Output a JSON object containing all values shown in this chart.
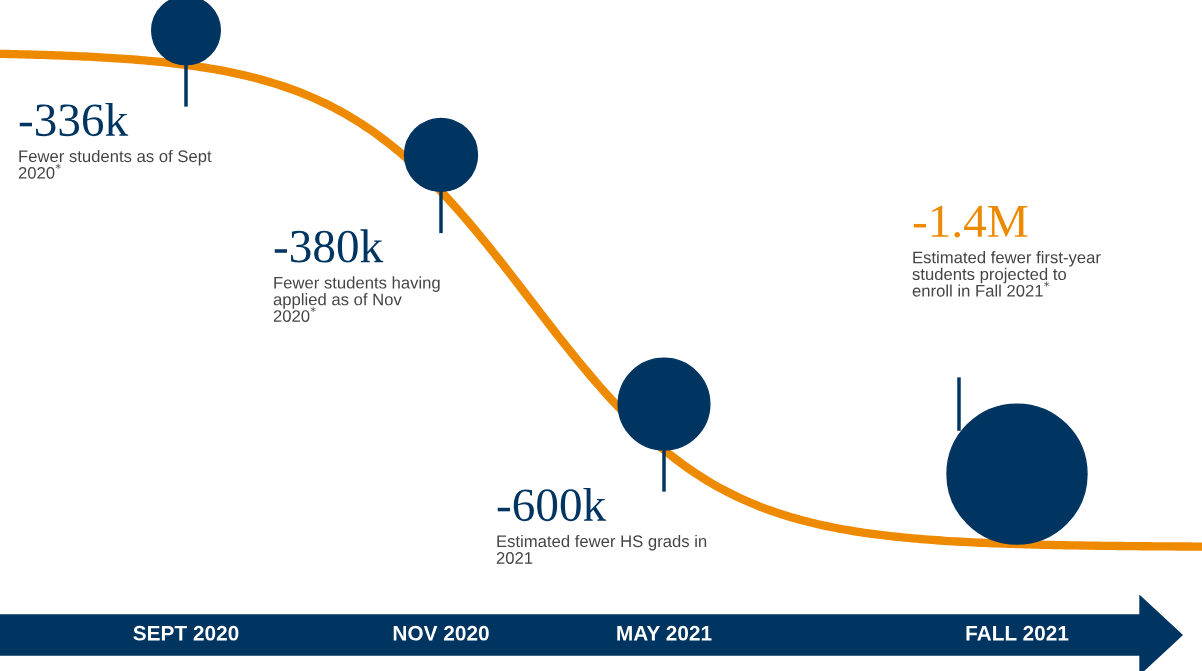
{
  "chart_data": {
    "type": "other",
    "categories": [
      "SEPT 2020",
      "NOV 2020",
      "MAY 2021",
      "FALL 2021"
    ],
    "values": [
      -336000,
      -380000,
      -600000,
      -1400000
    ],
    "value_labels": [
      "-336k",
      "-380k",
      "-600k",
      "-1.4M"
    ],
    "colors": [
      "#003461",
      "#003461",
      "#003461",
      "#003461"
    ],
    "annotations": [
      "Fewer students as of Sept 2020$^{*}$",
      "Fewer students having applied as of Nov 2020$^{*}$",
      "Estimated fewer HS grads in 2021",
      "Estimated fewer first-year students projected to enroll in Fall 2021$^{*}$"
    ]
  }
}
